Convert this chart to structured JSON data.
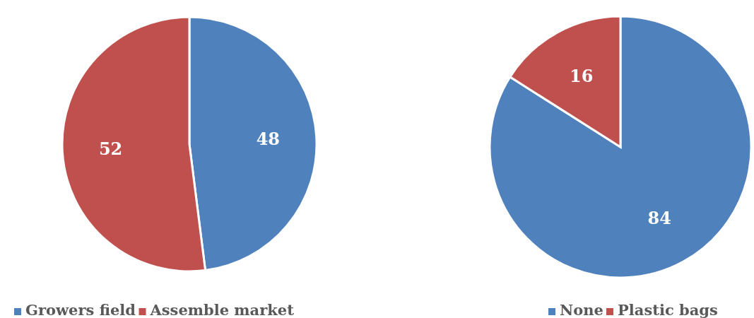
{
  "chart_data": [
    {
      "type": "pie",
      "categories": [
        "Growers field",
        "Assemble market"
      ],
      "values": [
        48,
        52
      ],
      "colors": [
        "#4f81bd",
        "#c0504d"
      ],
      "data_labels": true,
      "legend": "bottom"
    },
    {
      "type": "pie",
      "categories": [
        "None",
        "Plastic bags"
      ],
      "values": [
        84,
        16
      ],
      "colors": [
        "#4f81bd",
        "#c0504d"
      ],
      "data_labels": true,
      "legend": "bottom"
    }
  ]
}
